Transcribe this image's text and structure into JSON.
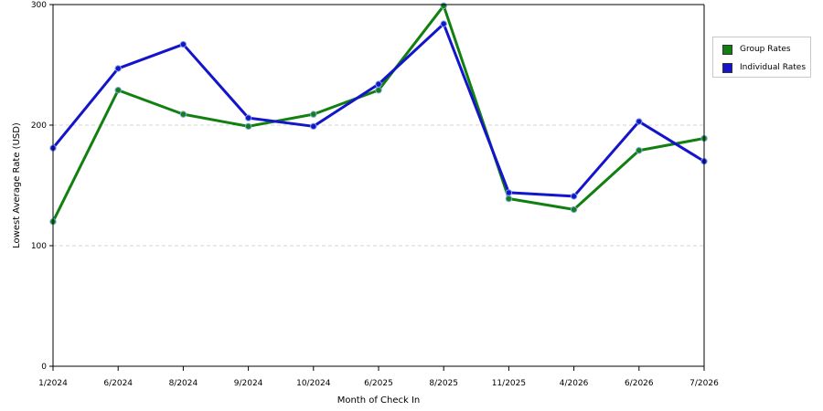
{
  "chart_data": {
    "type": "line",
    "xlabel": "Month of Check In",
    "ylabel": "Lowest Average Rate (USD)",
    "categories": [
      "1/2024",
      "6/2024",
      "8/2024",
      "9/2024",
      "10/2024",
      "6/2025",
      "8/2025",
      "11/2025",
      "4/2026",
      "6/2026",
      "7/2026"
    ],
    "ylim": [
      0,
      300
    ],
    "yticks": [
      0,
      100,
      200,
      300
    ],
    "grid": "horizontal dashed",
    "legend_position": "right",
    "series": [
      {
        "name": "Group Rates",
        "color": "#118011",
        "values": [
          120,
          229,
          209,
          199,
          209,
          229,
          299,
          139,
          130,
          179,
          189
        ]
      },
      {
        "name": "Individual Rates",
        "color": "#1414cc",
        "values": [
          181,
          247,
          267,
          206,
          199,
          234,
          284,
          144,
          141,
          203,
          170
        ]
      }
    ]
  }
}
